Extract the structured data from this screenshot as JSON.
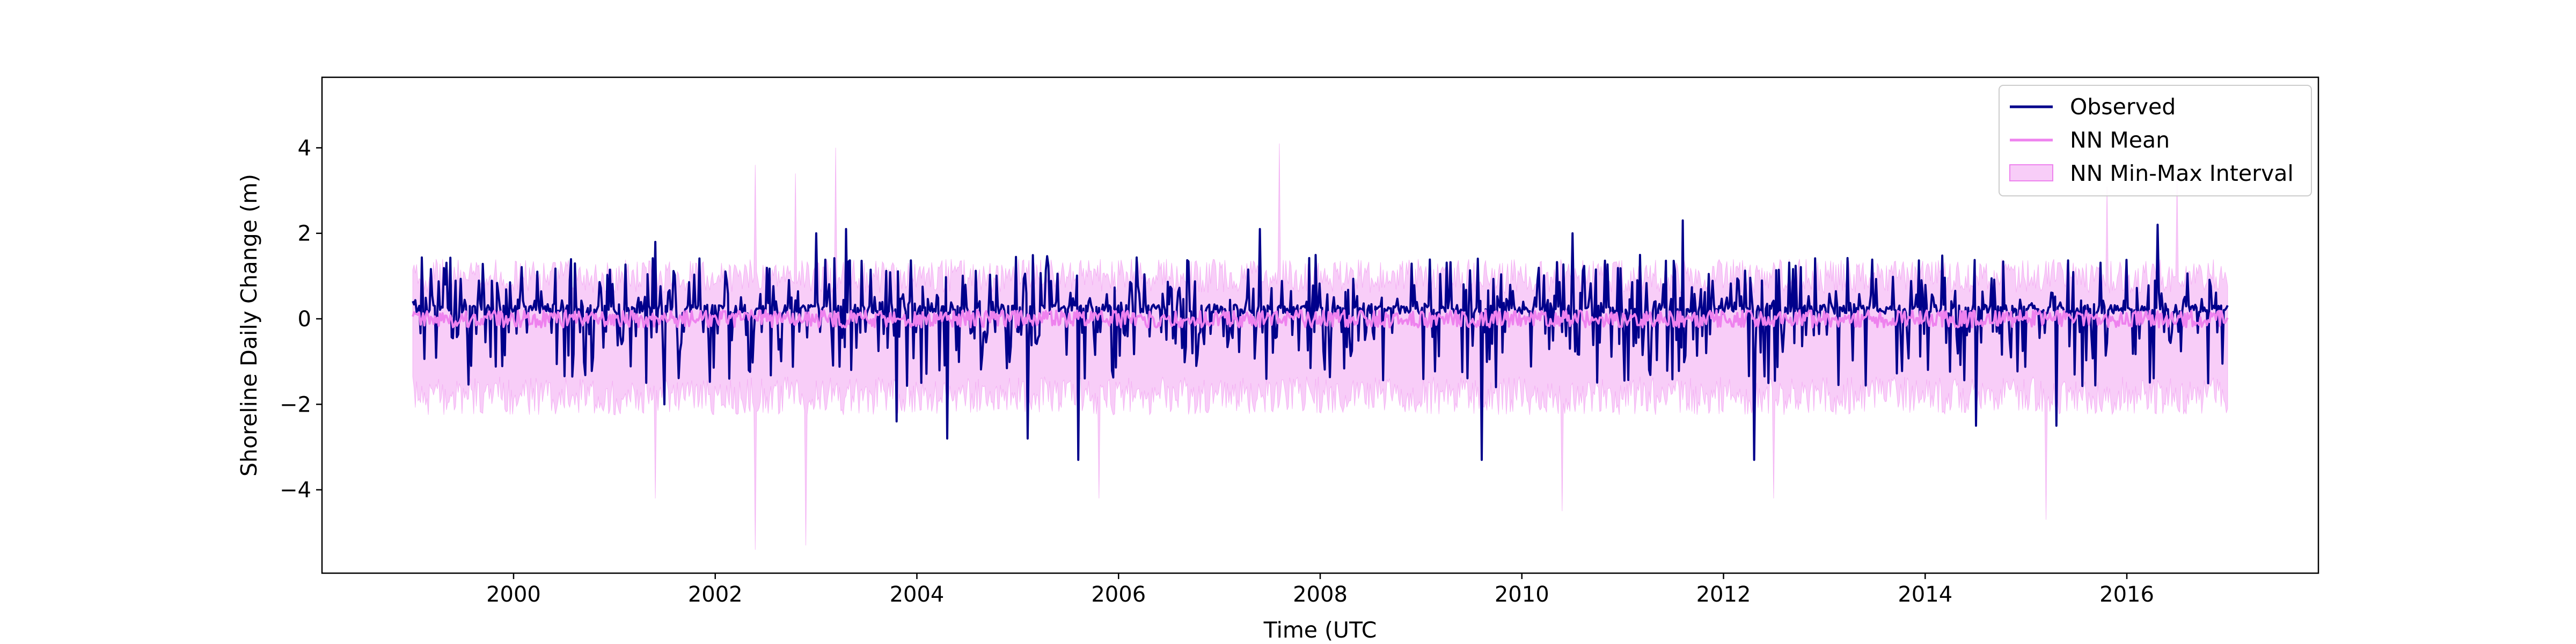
{
  "chart_data": {
    "type": "line",
    "title": "",
    "xlabel": "Time (UTC",
    "ylabel": "Shoreline Daily Change (m)",
    "xlim": [
      1998.1,
      2017.9
    ],
    "ylim": [
      -5.95,
      5.65
    ],
    "xticks": [
      2000,
      2002,
      2004,
      2006,
      2008,
      2010,
      2012,
      2014,
      2016
    ],
    "xtick_labels": [
      "2000",
      "2002",
      "2004",
      "2006",
      "2008",
      "2010",
      "2012",
      "2014",
      "2016"
    ],
    "yticks": [
      -4,
      -2,
      0,
      2,
      4
    ],
    "ytick_labels": [
      "−4",
      "−2",
      "0",
      "2",
      "4"
    ],
    "x_range": [
      1999.0,
      2017.0
    ],
    "grid": false,
    "legend": {
      "location": "upper right",
      "entries": [
        "Observed",
        "NN Mean",
        "NN Min-Max Interval"
      ]
    },
    "series": [
      {
        "name": "Observed",
        "kind": "line",
        "color": "#00008b",
        "typical_range": [
          -1.0,
          1.0
        ],
        "extremes": [
          {
            "x": 2001.4,
            "y": 1.8
          },
          {
            "x": 2001.5,
            "y": -2.0
          },
          {
            "x": 2003.0,
            "y": 2.0
          },
          {
            "x": 2003.3,
            "y": 2.1
          },
          {
            "x": 2003.8,
            "y": -2.4
          },
          {
            "x": 2004.3,
            "y": -2.8
          },
          {
            "x": 2005.1,
            "y": -2.8
          },
          {
            "x": 2005.6,
            "y": 2.1
          },
          {
            "x": 2005.6,
            "y": -3.3
          },
          {
            "x": 2007.4,
            "y": 2.1
          },
          {
            "x": 2009.6,
            "y": -3.3
          },
          {
            "x": 2010.5,
            "y": 2.0
          },
          {
            "x": 2011.6,
            "y": 2.3
          },
          {
            "x": 2012.3,
            "y": -3.3
          },
          {
            "x": 2014.5,
            "y": -2.5
          },
          {
            "x": 2015.3,
            "y": 2.3
          },
          {
            "x": 2015.3,
            "y": -2.5
          },
          {
            "x": 2016.3,
            "y": 2.2
          }
        ]
      },
      {
        "name": "NN Mean",
        "kind": "line",
        "color": "#ee82ee",
        "typical_range": [
          -0.3,
          0.3
        ]
      },
      {
        "name": "NN Min-Max Interval",
        "kind": "band",
        "color": "#ee82ee",
        "typical_lower": -1.8,
        "typical_upper": 1.0,
        "extremes": [
          {
            "x": 2002.4,
            "y": 3.6
          },
          {
            "x": 2002.4,
            "y": -5.4
          },
          {
            "x": 2002.9,
            "y": -5.3
          },
          {
            "x": 2002.8,
            "y": 3.4
          },
          {
            "x": 2003.2,
            "y": 4.0
          },
          {
            "x": 2007.6,
            "y": 4.1
          },
          {
            "x": 2001.4,
            "y": -4.2
          },
          {
            "x": 2005.8,
            "y": -4.2
          },
          {
            "x": 2010.4,
            "y": -4.5
          },
          {
            "x": 2012.5,
            "y": -4.2
          },
          {
            "x": 2015.2,
            "y": -4.7
          },
          {
            "x": 2015.8,
            "y": 3.1
          },
          {
            "x": 2016.5,
            "y": 3.3
          }
        ]
      }
    ]
  }
}
